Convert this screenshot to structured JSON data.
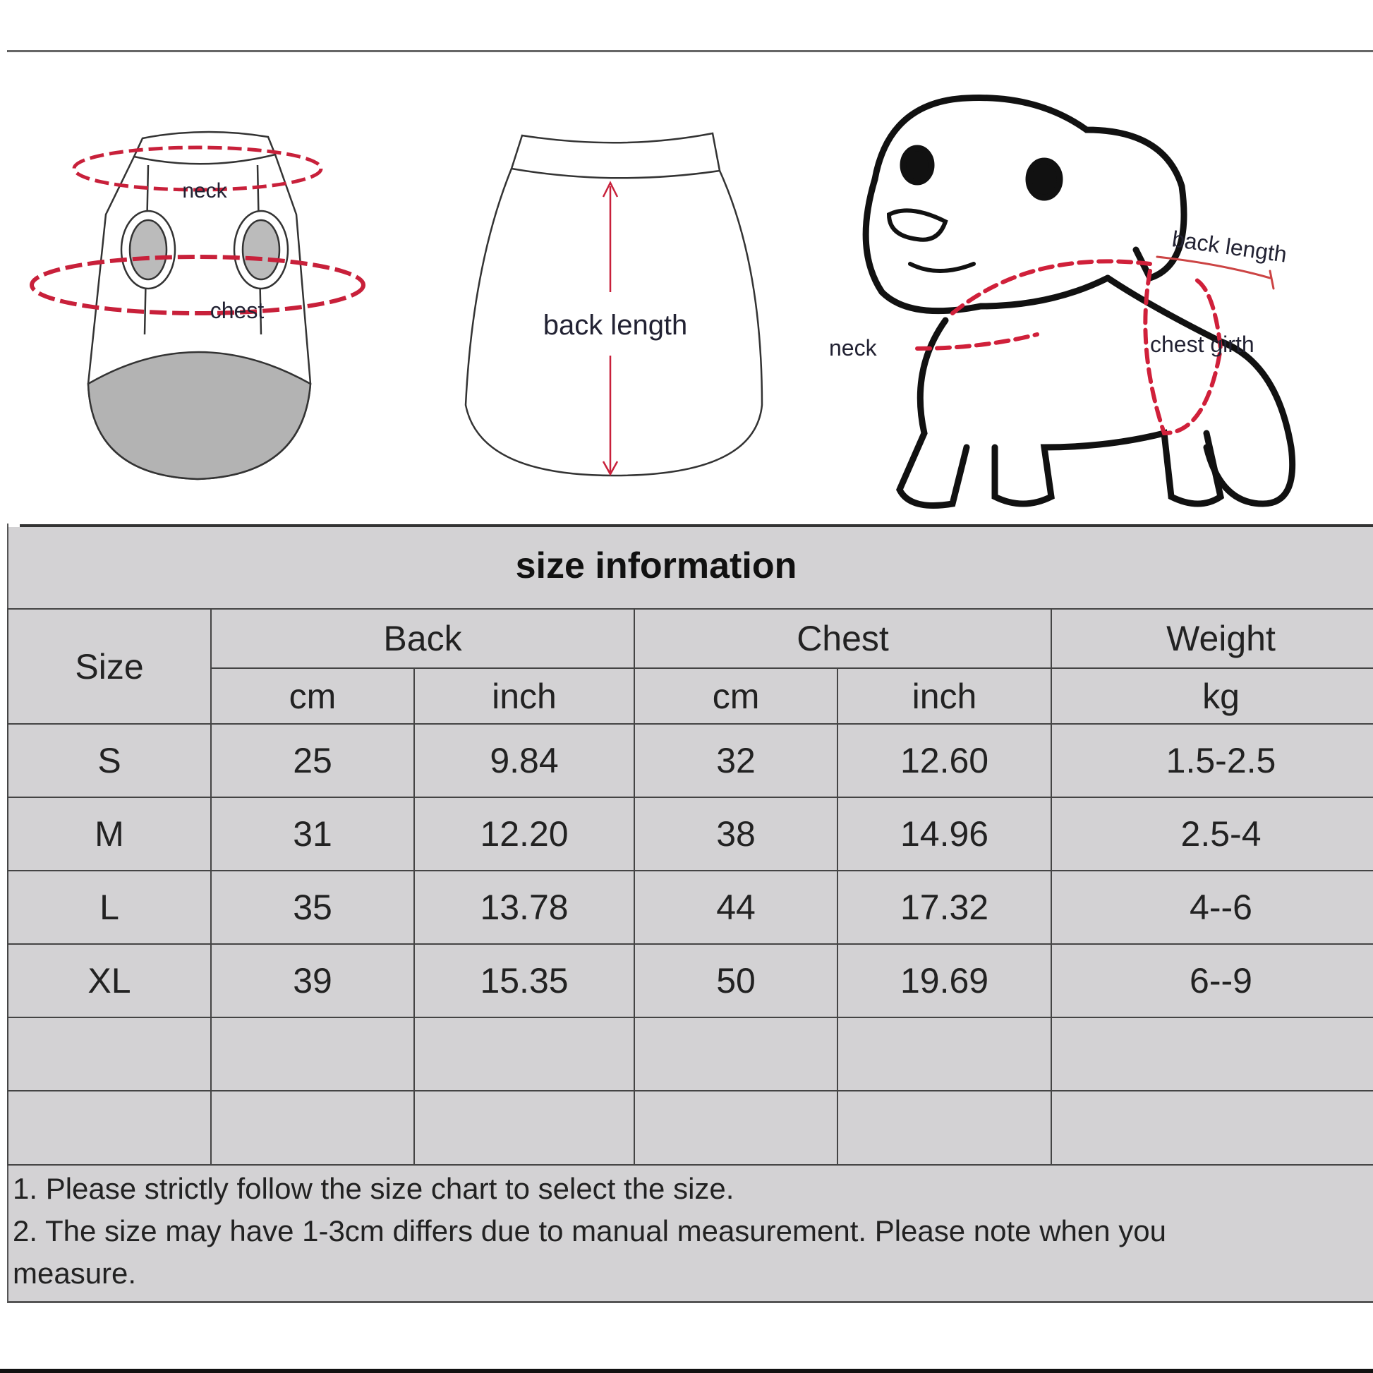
{
  "illustrations": {
    "front_labels": {
      "neck": "neck",
      "chest": "chest"
    },
    "back_label": "back length",
    "dog_labels": {
      "back_length": "back length",
      "chest_girth": "chest girth",
      "neck": "neck"
    },
    "accent_color": "#d0203a"
  },
  "title": "size  information",
  "table": {
    "size_header": "Size",
    "groups": [
      "Back",
      "Chest",
      "Weight"
    ],
    "units": [
      "cm",
      "inch",
      "cm",
      "inch",
      "kg"
    ],
    "rows": [
      [
        "S",
        "25",
        "9.84",
        "32",
        "12.60",
        "1.5-2.5"
      ],
      [
        "M",
        "31",
        "12.20",
        "38",
        "14.96",
        "2.5-4"
      ],
      [
        "L",
        "35",
        "13.78",
        "44",
        "17.32",
        "4--6"
      ],
      [
        "XL",
        "39",
        "15.35",
        "50",
        "19.69",
        "6--9"
      ]
    ]
  },
  "notes": [
    "1. Please strictly follow the size chart  to select the size.",
    "2. The size may have 1-3cm differs due to manual measurement. Please note when you",
    "measure."
  ]
}
